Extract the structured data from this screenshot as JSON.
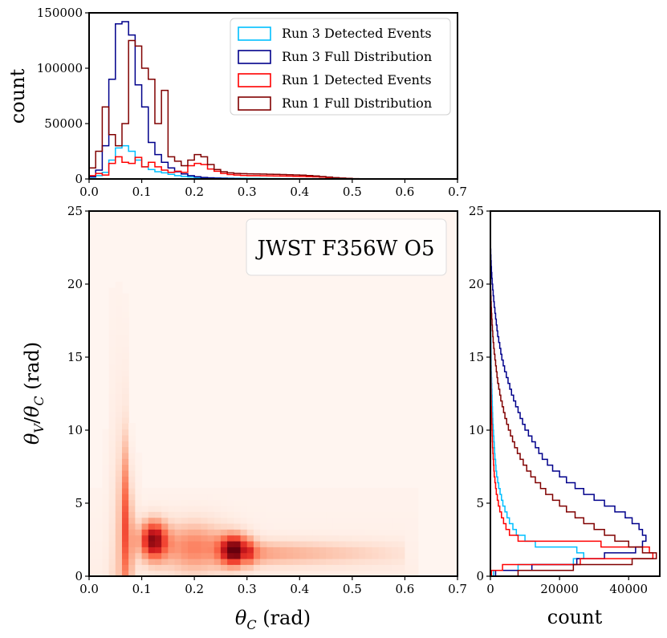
{
  "chart_data": [
    {
      "type": "histogram-step",
      "panel": "top-marginal",
      "ylabel": "count",
      "xlim": [
        0.0,
        0.7
      ],
      "ylim": [
        0,
        150000
      ],
      "xticks": [
        "0.0",
        "0.1",
        "0.2",
        "0.3",
        "0.4",
        "0.5",
        "0.6",
        "0.7"
      ],
      "yticks": [
        "0",
        "50000",
        "100000",
        "150000"
      ],
      "bin_edges_step": 0.0125,
      "series": [
        {
          "name": "Run 3 Detected Events",
          "color": "#00bfff",
          "values": [
            1500,
            3000,
            6000,
            17000,
            28000,
            30000,
            25000,
            17000,
            11000,
            8500,
            6500,
            5500,
            4200,
            3000,
            2300,
            1800,
            1400,
            1100,
            1000,
            900,
            800,
            700,
            650,
            600,
            550,
            500,
            450,
            400,
            350,
            300,
            250,
            200,
            150,
            100,
            60,
            40,
            20,
            10,
            5,
            2,
            1,
            0,
            0,
            0,
            0,
            0,
            0,
            0,
            0,
            0,
            0,
            0,
            0,
            0,
            0,
            0
          ]
        },
        {
          "name": "Run 3 Full Distribution",
          "color": "#00008b",
          "values": [
            2000,
            8000,
            30000,
            90000,
            140000,
            142000,
            130000,
            85000,
            65000,
            33000,
            22000,
            15000,
            10000,
            6500,
            4500,
            3000,
            2000,
            1400,
            1000,
            700,
            500,
            350,
            250,
            180,
            120,
            90,
            60,
            40,
            30,
            20,
            15,
            10,
            8,
            6,
            4,
            3,
            2,
            1,
            1,
            0,
            0,
            0,
            0,
            0,
            0,
            0,
            0,
            0,
            0,
            0,
            0,
            0,
            0,
            0,
            0,
            0
          ]
        },
        {
          "name": "Run 1 Detected Events",
          "color": "#ff0000",
          "values": [
            3000,
            5000,
            3500,
            14000,
            20000,
            15000,
            14000,
            19500,
            11000,
            15000,
            11000,
            8000,
            6000,
            7000,
            6000,
            12000,
            14000,
            13000,
            9000,
            7000,
            5000,
            4000,
            3500,
            3200,
            3000,
            3000,
            2900,
            2800,
            2700,
            2600,
            2500,
            2400,
            2300,
            2100,
            1900,
            1600,
            1300,
            900,
            600,
            400,
            200,
            100,
            50,
            0,
            0,
            0,
            0,
            0,
            0,
            0,
            0,
            0,
            0,
            0,
            0,
            0
          ]
        },
        {
          "name": "Run 1 Full Distribution",
          "color": "#800000",
          "values": [
            10000,
            25000,
            65000,
            40000,
            30000,
            50000,
            125000,
            120000,
            100000,
            90000,
            50000,
            80000,
            20000,
            16000,
            12000,
            17000,
            22000,
            20000,
            13000,
            8500,
            6500,
            5500,
            5000,
            4800,
            4600,
            4500,
            4400,
            4300,
            4200,
            4000,
            3800,
            3600,
            3400,
            3100,
            2700,
            2200,
            1700,
            1200,
            800,
            500,
            300,
            150,
            70,
            20,
            0,
            0,
            0,
            0,
            0,
            0,
            0,
            0,
            0,
            0,
            0,
            0
          ]
        }
      ],
      "legend": "top-right"
    },
    {
      "type": "heatmap",
      "panel": "main",
      "title": "JWST F356W O5",
      "xlabel": "θ_C (rad)",
      "ylabel": "θ_V/θ_C (rad)",
      "xlim": [
        0.0,
        0.7
      ],
      "ylim": [
        0,
        25
      ],
      "xticks": [
        "0.0",
        "0.1",
        "0.2",
        "0.3",
        "0.4",
        "0.5",
        "0.6",
        "0.7"
      ],
      "yticks": [
        "0",
        "5",
        "10",
        "15",
        "20",
        "25"
      ],
      "colormap": "Reds",
      "peaks": [
        {
          "x": 0.12,
          "y": 2.5,
          "intensity": 0.85
        },
        {
          "x": 0.275,
          "y": 1.8,
          "intensity": 1.0
        },
        {
          "x": 0.065,
          "y": 4.5,
          "intensity": 0.55
        }
      ]
    },
    {
      "type": "histogram-step",
      "panel": "right-marginal",
      "orientation": "horizontal",
      "xlabel": "count",
      "xlim": [
        0,
        49000
      ],
      "ylim": [
        0,
        25
      ],
      "xticks": [
        "0",
        "20000",
        "40000"
      ],
      "yticks": [
        "0",
        "5",
        "10",
        "15",
        "20",
        "25"
      ],
      "bin_edges_step": 0.4,
      "series": [
        {
          "name": "Run 3 Detected Events",
          "color": "#00bfff",
          "values": [
            900,
            8000,
            24000,
            27000,
            25000,
            13000,
            10000,
            7500,
            6500,
            5500,
            4800,
            4200,
            3600,
            3200,
            2800,
            2400,
            2100,
            1800,
            1600,
            1500,
            1300,
            1200,
            1100,
            1000,
            900,
            800,
            700,
            650,
            600,
            550,
            500,
            450,
            400,
            350,
            300,
            250,
            220,
            200,
            180,
            160,
            140,
            120,
            100,
            90,
            80,
            70,
            60,
            50,
            40,
            30,
            20,
            15,
            10,
            8,
            6,
            4,
            2,
            1,
            1,
            0,
            0,
            0,
            0
          ]
        },
        {
          "name": "Run 3 Full Distribution",
          "color": "#00008b",
          "values": [
            1500,
            12000,
            25000,
            33000,
            42000,
            44000,
            45000,
            44000,
            43000,
            41000,
            39000,
            36000,
            33000,
            30000,
            27000,
            24500,
            22000,
            20000,
            18000,
            16500,
            15000,
            14000,
            13000,
            12000,
            11000,
            10000,
            9300,
            8600,
            8000,
            7300,
            6700,
            6100,
            5600,
            5100,
            4600,
            4100,
            3700,
            3300,
            3000,
            2700,
            2400,
            2100,
            1900,
            1700,
            1500,
            1300,
            1100,
            950,
            800,
            650,
            500,
            400,
            300,
            220,
            150,
            100,
            60,
            30,
            15,
            5,
            2,
            0,
            0
          ]
        },
        {
          "name": "Run 1 Detected Events",
          "color": "#ff0000",
          "values": [
            300,
            3500,
            26000,
            47000,
            46000,
            32000,
            8000,
            5500,
            4500,
            3800,
            3200,
            2700,
            2300,
            2000,
            1700,
            1500,
            1300,
            1100,
            1000,
            900,
            800,
            700,
            600,
            550,
            500,
            450,
            400,
            350,
            300,
            250,
            220,
            200,
            180,
            160,
            140,
            120,
            100,
            90,
            80,
            70,
            60,
            50,
            40,
            30,
            20,
            15,
            10,
            5,
            3,
            2,
            1,
            0,
            0,
            0,
            0,
            0,
            0,
            0,
            0,
            0,
            0,
            0,
            0
          ]
        },
        {
          "name": "Run 1 Full Distribution",
          "color": "#800000",
          "values": [
            8000,
            24000,
            41000,
            48000,
            44000,
            40000,
            36000,
            33000,
            30000,
            27000,
            24500,
            22000,
            20000,
            18000,
            16000,
            14500,
            13000,
            11700,
            10500,
            9500,
            8600,
            7800,
            7000,
            6400,
            5800,
            5200,
            4700,
            4200,
            3800,
            3400,
            3000,
            2700,
            2400,
            2100,
            1900,
            1700,
            1500,
            1300,
            1100,
            950,
            800,
            680,
            570,
            470,
            380,
            300,
            230,
            170,
            120,
            80,
            50,
            30,
            20,
            12,
            8,
            5,
            3,
            2,
            1,
            1,
            0,
            0,
            0
          ]
        }
      ]
    }
  ]
}
